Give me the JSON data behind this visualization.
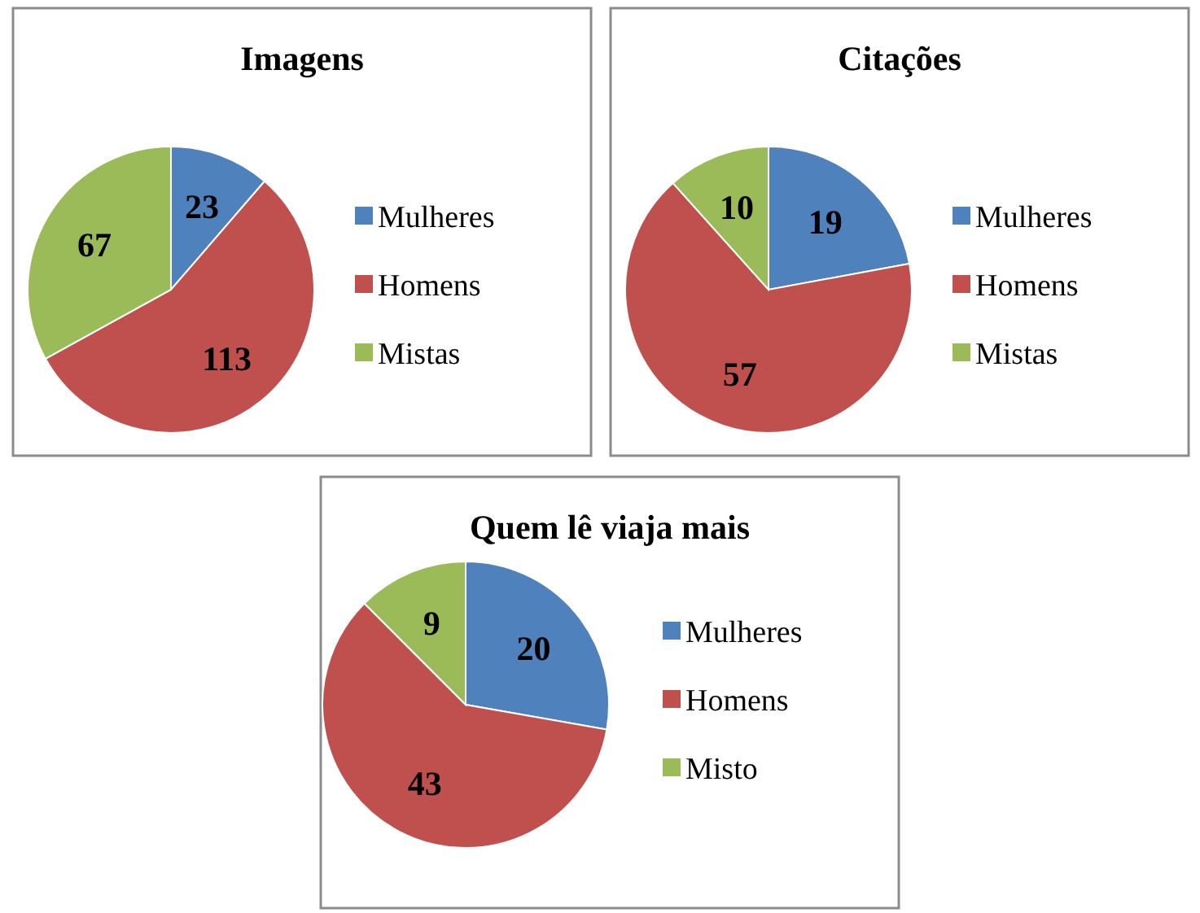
{
  "chart_data": [
    {
      "type": "pie",
      "title": "Imagens",
      "categories": [
        "Mulheres",
        "Homens",
        "Mistas"
      ],
      "values": [
        23,
        113,
        67
      ],
      "colors": [
        "#4f81bd",
        "#c0504d",
        "#9bbb59"
      ],
      "data_labels": true,
      "legend": "right"
    },
    {
      "type": "pie",
      "title": "Citações",
      "categories": [
        "Mulheres",
        "Homens",
        "Mistas"
      ],
      "values": [
        19,
        57,
        10
      ],
      "colors": [
        "#4f81bd",
        "#c0504d",
        "#9bbb59"
      ],
      "data_labels": true,
      "legend": "right"
    },
    {
      "type": "pie",
      "title": "Quem lê viaja mais",
      "categories": [
        "Mulheres",
        "Homens",
        "Misto"
      ],
      "values": [
        20,
        43,
        9
      ],
      "colors": [
        "#4f81bd",
        "#c0504d",
        "#9bbb59"
      ],
      "data_labels": true,
      "legend": "right"
    }
  ]
}
